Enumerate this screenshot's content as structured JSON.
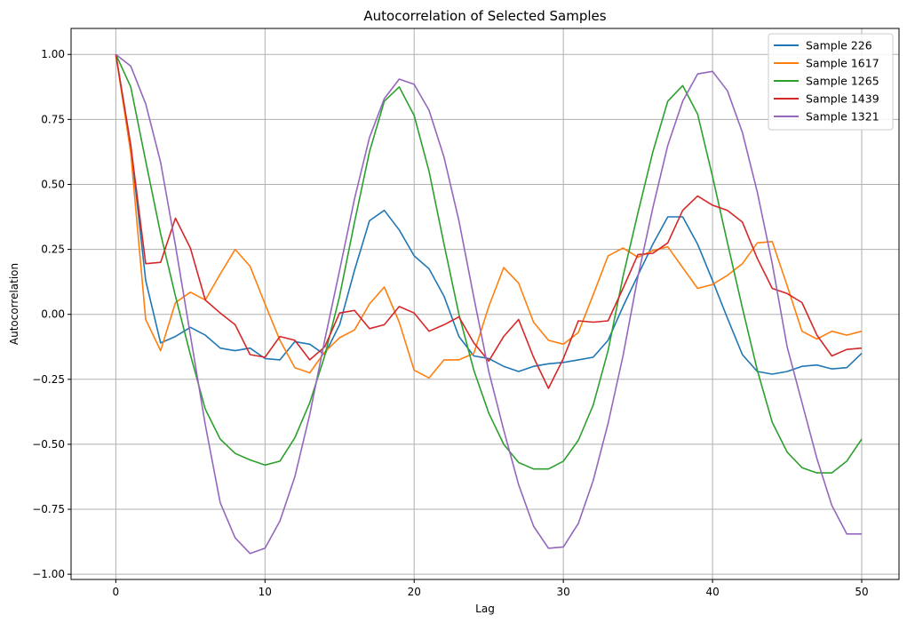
{
  "chart_data": {
    "type": "line",
    "title": "Autocorrelation of Selected Samples",
    "xlabel": "Lag",
    "ylabel": "Autocorrelation",
    "xlim": [
      -3,
      52.5
    ],
    "ylim": [
      -1.02,
      1.1
    ],
    "xticks": [
      0,
      10,
      20,
      30,
      40,
      50
    ],
    "xtick_labels": [
      "0",
      "10",
      "20",
      "30",
      "40",
      "50"
    ],
    "yticks": [
      -1.0,
      -0.75,
      -0.5,
      -0.25,
      0.0,
      0.25,
      0.5,
      0.75,
      1.0
    ],
    "ytick_labels": [
      "−1.00",
      "−0.75",
      "−0.50",
      "−0.25",
      "0.00",
      "0.25",
      "0.50",
      "0.75",
      "1.00"
    ],
    "grid": true,
    "legend_position": "top-right",
    "x": [
      0,
      1,
      2,
      3,
      4,
      5,
      6,
      7,
      8,
      9,
      10,
      11,
      12,
      13,
      14,
      15,
      16,
      17,
      18,
      19,
      20,
      21,
      22,
      23,
      24,
      25,
      26,
      27,
      28,
      29,
      30,
      31,
      32,
      33,
      34,
      35,
      36,
      37,
      38,
      39,
      40,
      41,
      42,
      43,
      44,
      45,
      46,
      47,
      48,
      49,
      50
    ],
    "series": [
      {
        "name": "Sample 226",
        "color": "#1f77b4",
        "values": [
          1.0,
          0.65,
          0.13,
          -0.11,
          -0.085,
          -0.05,
          -0.08,
          -0.13,
          -0.14,
          -0.13,
          -0.17,
          -0.175,
          -0.105,
          -0.115,
          -0.155,
          -0.04,
          0.17,
          0.36,
          0.4,
          0.325,
          0.225,
          0.175,
          0.07,
          -0.085,
          -0.16,
          -0.17,
          -0.2,
          -0.22,
          -0.2,
          -0.19,
          -0.185,
          -0.175,
          -0.165,
          -0.1,
          0.03,
          0.15,
          0.27,
          0.375,
          0.375,
          0.27,
          0.13,
          -0.015,
          -0.155,
          -0.22,
          -0.23,
          -0.22,
          -0.2,
          -0.195,
          -0.21,
          -0.205,
          -0.15
        ]
      },
      {
        "name": "Sample 1617",
        "color": "#ff7f0e",
        "values": [
          1.0,
          0.62,
          -0.02,
          -0.14,
          0.045,
          0.085,
          0.055,
          0.155,
          0.25,
          0.185,
          0.04,
          -0.1,
          -0.205,
          -0.225,
          -0.145,
          -0.09,
          -0.06,
          0.04,
          0.105,
          -0.03,
          -0.215,
          -0.245,
          -0.175,
          -0.175,
          -0.15,
          0.03,
          0.18,
          0.12,
          -0.03,
          -0.1,
          -0.115,
          -0.07,
          0.075,
          0.225,
          0.255,
          0.22,
          0.245,
          0.26,
          0.18,
          0.1,
          0.115,
          0.15,
          0.195,
          0.275,
          0.28,
          0.11,
          -0.065,
          -0.095,
          -0.065,
          -0.08,
          -0.065
        ]
      },
      {
        "name": "Sample 1265",
        "color": "#2ca02c",
        "values": [
          1.0,
          0.875,
          0.59,
          0.31,
          0.07,
          -0.155,
          -0.365,
          -0.48,
          -0.535,
          -0.56,
          -0.58,
          -0.565,
          -0.475,
          -0.34,
          -0.16,
          0.07,
          0.355,
          0.625,
          0.82,
          0.875,
          0.765,
          0.55,
          0.27,
          0.0,
          -0.215,
          -0.38,
          -0.5,
          -0.57,
          -0.595,
          -0.595,
          -0.565,
          -0.485,
          -0.35,
          -0.14,
          0.145,
          0.39,
          0.625,
          0.82,
          0.88,
          0.77,
          0.53,
          0.275,
          0.025,
          -0.215,
          -0.415,
          -0.53,
          -0.59,
          -0.61,
          -0.61,
          -0.565,
          -0.48
        ]
      },
      {
        "name": "Sample 1439",
        "color": "#d62728",
        "values": [
          1.0,
          0.65,
          0.195,
          0.2,
          0.37,
          0.255,
          0.055,
          0.005,
          -0.04,
          -0.155,
          -0.165,
          -0.085,
          -0.1,
          -0.175,
          -0.125,
          0.005,
          0.015,
          -0.055,
          -0.04,
          0.03,
          0.005,
          -0.065,
          -0.04,
          -0.01,
          -0.11,
          -0.18,
          -0.085,
          -0.02,
          -0.165,
          -0.285,
          -0.17,
          -0.025,
          -0.03,
          -0.025,
          0.1,
          0.23,
          0.235,
          0.275,
          0.4,
          0.455,
          0.42,
          0.4,
          0.355,
          0.215,
          0.1,
          0.08,
          0.045,
          -0.08,
          -0.16,
          -0.135,
          -0.13
        ]
      },
      {
        "name": "Sample 1321",
        "color": "#9467bd",
        "values": [
          1.0,
          0.955,
          0.81,
          0.585,
          0.265,
          -0.08,
          -0.425,
          -0.725,
          -0.86,
          -0.92,
          -0.9,
          -0.795,
          -0.625,
          -0.385,
          -0.1,
          0.17,
          0.445,
          0.68,
          0.83,
          0.905,
          0.885,
          0.785,
          0.605,
          0.36,
          0.065,
          -0.22,
          -0.445,
          -0.655,
          -0.815,
          -0.9,
          -0.895,
          -0.805,
          -0.64,
          -0.42,
          -0.16,
          0.145,
          0.41,
          0.65,
          0.82,
          0.925,
          0.935,
          0.86,
          0.7,
          0.47,
          0.195,
          -0.125,
          -0.34,
          -0.555,
          -0.735,
          -0.845,
          -0.845
        ]
      }
    ]
  }
}
